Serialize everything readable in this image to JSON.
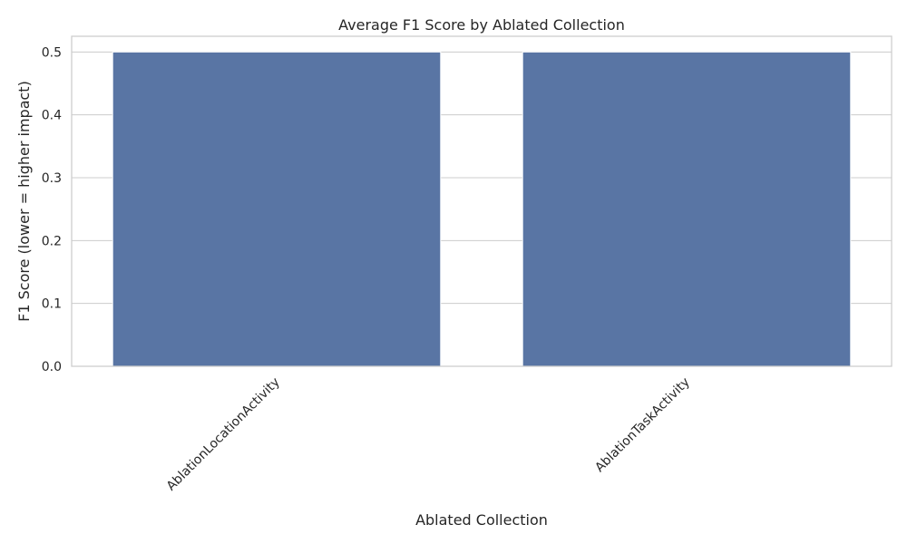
{
  "chart_data": {
    "type": "bar",
    "title": "Average F1 Score by Ablated Collection",
    "xlabel": "Ablated Collection",
    "ylabel": "F1 Score (lower = higher impact)",
    "categories": [
      "AblationLocationActivity",
      "AblationTaskActivity"
    ],
    "values": [
      0.5,
      0.5
    ],
    "ylim": [
      0,
      0.525
    ],
    "yticks": [
      "0.0",
      "0.1",
      "0.2",
      "0.3",
      "0.4",
      "0.5"
    ],
    "grid": true,
    "legend": "none",
    "bar_color": "#5975a4",
    "grid_color": "#cccccc",
    "spine_color": "#cccccc"
  }
}
